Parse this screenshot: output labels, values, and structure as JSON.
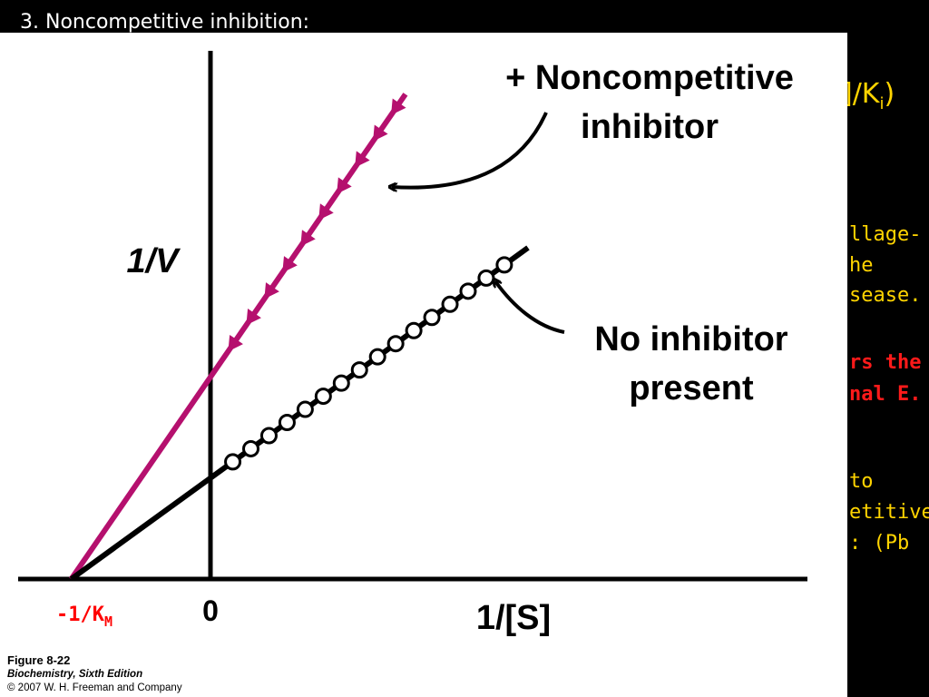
{
  "slide": {
    "title": "3. Noncompetitive inhibition:",
    "formula_tail": "]/K",
    "formula_sub": "i",
    "formula_close": ")",
    "bg_lines": [
      {
        "text": "llage-",
        "color": "yellow"
      },
      {
        "text": "he",
        "color": "yellow"
      },
      {
        "text": "sease.",
        "color": "yellow"
      },
      {
        "text": "rs the",
        "color": "red"
      },
      {
        "text": "nal E.",
        "color": "red"
      },
      {
        "text": " to",
        "color": "yellow"
      },
      {
        "text": "etitive",
        "color": "yellow"
      },
      {
        "text": ": (Pb",
        "color": "yellow"
      }
    ]
  },
  "chart_data": {
    "type": "line",
    "title": "",
    "xlabel": "1/[S]",
    "ylabel": "1/V",
    "x_tick_zero": "0",
    "x_intercept_label": "-1/K",
    "x_intercept_sub": "M",
    "xlim": [
      -1,
      3.55
    ],
    "ylim": [
      0,
      3.55
    ],
    "series": [
      {
        "name": "+ Noncompetitive inhibitor",
        "name_line1": "+ Noncompetitive",
        "name_line2": "inhibitor",
        "color": "#b5106e",
        "marker": "arrow-triangle",
        "intercept_x": -1,
        "slope": 1.45,
        "line_x_end": 1.4,
        "points_x": [
          0.16,
          0.29,
          0.42,
          0.55,
          0.68,
          0.81,
          0.94,
          1.07,
          1.2,
          1.33
        ]
      },
      {
        "name": "No inhibitor present",
        "name_line1": "No inhibitor",
        "name_line2": "present",
        "color": "#000000",
        "marker": "open-circle",
        "intercept_x": -1,
        "slope": 0.725,
        "line_x_end": 2.28,
        "points_x": [
          0.16,
          0.29,
          0.42,
          0.55,
          0.68,
          0.81,
          0.94,
          1.07,
          1.2,
          1.33,
          1.46,
          1.59,
          1.72,
          1.85,
          1.98,
          2.11
        ]
      }
    ]
  },
  "caption": {
    "figure": "Figure 8-22",
    "book": "Biochemistry, Sixth Edition",
    "copyright": "© 2007 W. H. Freeman and Company"
  }
}
